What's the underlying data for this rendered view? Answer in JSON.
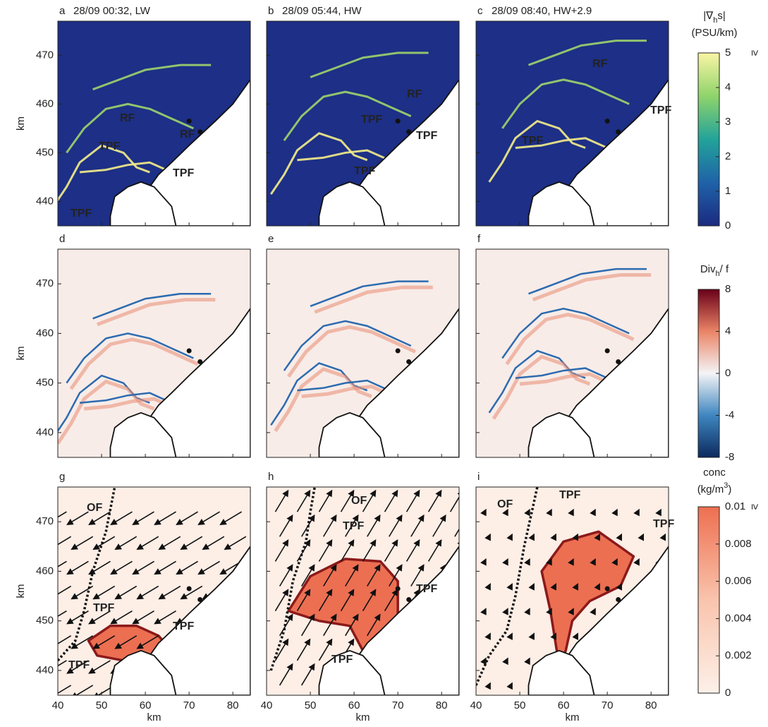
{
  "axes": {
    "xlim": [
      40,
      84
    ],
    "ylim": [
      435,
      477
    ],
    "xticks": [
      40,
      50,
      60,
      70,
      80
    ],
    "yticks": [
      440,
      450,
      460,
      470
    ],
    "xlabel": "km",
    "ylabel": "km"
  },
  "panels": [
    {
      "letter": "a",
      "title": "28/09 00:32, LW",
      "labels": [
        "RF",
        "TPF",
        "RF",
        "TPF",
        "TPF"
      ]
    },
    {
      "letter": "b",
      "title": "28/09 05:44, HW",
      "labels": [
        "RF",
        "TPF",
        "TPF",
        "TPF"
      ]
    },
    {
      "letter": "c",
      "title": "28/09 08:40, HW+2.9",
      "labels": [
        "RF",
        "TPF",
        "TPF"
      ]
    },
    {
      "letter": "d",
      "title": "",
      "labels": []
    },
    {
      "letter": "e",
      "title": "",
      "labels": []
    },
    {
      "letter": "f",
      "title": "",
      "labels": []
    },
    {
      "letter": "g",
      "title": "",
      "labels": [
        "OF",
        "TPF",
        "TPF",
        "TPF"
      ]
    },
    {
      "letter": "h",
      "title": "",
      "labels": [
        "OF",
        "TPF",
        "TPF",
        "TPF"
      ]
    },
    {
      "letter": "i",
      "title": "",
      "labels": [
        "OF",
        "TPF",
        "TPF"
      ]
    }
  ],
  "colorbars": [
    {
      "title_parts": [
        "|∇",
        "h",
        "s|"
      ],
      "unit": "(PSU/km)",
      "lim": [
        0,
        5
      ],
      "ticks": [
        0,
        1,
        2,
        3,
        4,
        5
      ],
      "max_marker": "≥",
      "colors": [
        "#1b2a80",
        "#1f62a8",
        "#22a39a",
        "#8fd36b",
        "#faf5a5"
      ]
    },
    {
      "title_parts": [
        "Div",
        "h",
        "/ f"
      ],
      "lim": [
        -8,
        8
      ],
      "ticks": [
        -8,
        -4,
        0,
        4,
        8
      ],
      "colors": [
        "#0c2a5e",
        "#3f86c0",
        "#f4f4f6",
        "#ea8466",
        "#6a0018"
      ]
    },
    {
      "title": "conc",
      "unit_parts": [
        "(kg/m",
        "3",
        ")"
      ],
      "lim": [
        0,
        0.01
      ],
      "ticks": [
        0,
        0.002,
        0.004,
        0.006,
        0.008,
        0.01
      ],
      "max_marker": "≥",
      "colors": [
        "#fdf0e8",
        "#f9c4ad",
        "#ee6f50"
      ]
    }
  ]
}
